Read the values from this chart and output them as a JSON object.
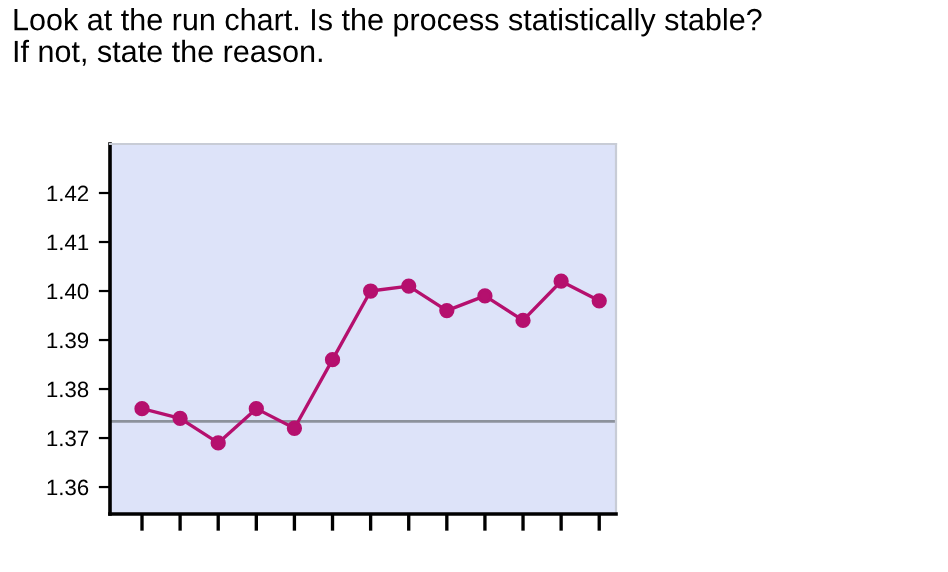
{
  "chart_data": {
    "type": "line",
    "title": "Look at the run chart. Is the process statistically stable?\nIf not, state the reason.",
    "categories": [
      null,
      null,
      null,
      null,
      null,
      null,
      null,
      null,
      null,
      null,
      null,
      null,
      null
    ],
    "series": [
      {
        "color": "#b5106e",
        "values": [
          1.376,
          1.374,
          1.369,
          1.376,
          1.372,
          1.386,
          1.4,
          1.401,
          1.396,
          1.399,
          1.394,
          1.402,
          1.398
        ]
      }
    ],
    "marker": "circle",
    "line_style": "solid",
    "ylim": [
      1.3545,
      1.43
    ],
    "yticks": [
      1.36,
      1.37,
      1.38,
      1.39,
      {
        "value": 1.4,
        "label": "1.40"
      },
      1.41,
      1.42
    ],
    "ref_lines": [
      {
        "axis": "y",
        "value": 1.3734,
        "color": "#8c929c"
      }
    ],
    "tick_labels": "y",
    "grid": false
  }
}
